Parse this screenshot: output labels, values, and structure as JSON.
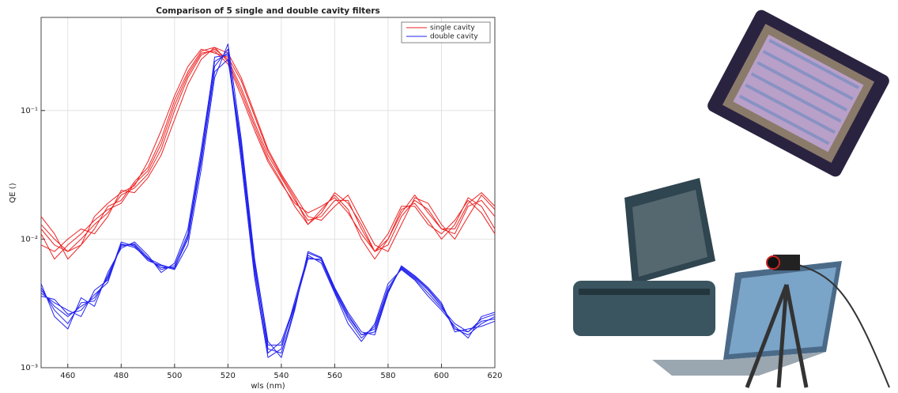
{
  "chart_data": {
    "type": "line",
    "title": "Comparison of 5 single and double cavity filters",
    "xlabel": "wls (nm)",
    "ylabel": "QE ()",
    "log_y": true,
    "grid": true,
    "legend": "top-right",
    "x": [
      450,
      455,
      460,
      465,
      470,
      475,
      480,
      485,
      490,
      495,
      500,
      505,
      510,
      515,
      520,
      525,
      530,
      535,
      540,
      545,
      550,
      555,
      560,
      565,
      570,
      575,
      580,
      585,
      590,
      595,
      600,
      605,
      610,
      615,
      620
    ],
    "xlim": [
      450,
      620
    ],
    "xticks": [
      460,
      480,
      500,
      520,
      540,
      560,
      580,
      600,
      620
    ],
    "ylim": [
      0.001,
      0.53
    ],
    "yticks": [
      {
        "value": 0.001,
        "label": "10⁻³"
      },
      {
        "value": 0.01,
        "label": "10⁻²"
      },
      {
        "value": 0.1,
        "label": "10⁻¹"
      }
    ],
    "series": [
      {
        "name": "single cavity",
        "color": "#ee2222",
        "curves": [
          [
            0.012,
            0.009,
            0.008,
            0.01,
            0.013,
            0.016,
            0.022,
            0.025,
            0.032,
            0.05,
            0.1,
            0.18,
            0.27,
            0.3,
            0.25,
            0.15,
            0.08,
            0.045,
            0.03,
            0.02,
            0.014,
            0.015,
            0.02,
            0.02,
            0.012,
            0.008,
            0.009,
            0.015,
            0.02,
            0.017,
            0.012,
            0.011,
            0.018,
            0.02,
            0.015
          ],
          [
            0.015,
            0.011,
            0.007,
            0.009,
            0.012,
            0.018,
            0.02,
            0.028,
            0.036,
            0.06,
            0.12,
            0.2,
            0.29,
            0.31,
            0.24,
            0.14,
            0.075,
            0.042,
            0.028,
            0.018,
            0.013,
            0.017,
            0.022,
            0.017,
            0.01,
            0.007,
            0.01,
            0.017,
            0.019,
            0.014,
            0.01,
            0.013,
            0.021,
            0.018,
            0.012
          ],
          [
            0.009,
            0.008,
            0.01,
            0.012,
            0.011,
            0.015,
            0.024,
            0.023,
            0.03,
            0.045,
            0.085,
            0.16,
            0.25,
            0.31,
            0.28,
            0.18,
            0.095,
            0.05,
            0.032,
            0.022,
            0.015,
            0.014,
            0.018,
            0.022,
            0.014,
            0.009,
            0.008,
            0.013,
            0.021,
            0.019,
            0.013,
            0.01,
            0.015,
            0.022,
            0.017
          ],
          [
            0.011,
            0.007,
            0.009,
            0.011,
            0.014,
            0.017,
            0.019,
            0.027,
            0.034,
            0.055,
            0.11,
            0.19,
            0.28,
            0.29,
            0.23,
            0.13,
            0.07,
            0.04,
            0.027,
            0.019,
            0.016,
            0.018,
            0.021,
            0.016,
            0.011,
            0.008,
            0.011,
            0.018,
            0.018,
            0.013,
            0.011,
            0.014,
            0.02,
            0.016,
            0.011
          ],
          [
            0.013,
            0.01,
            0.008,
            0.009,
            0.015,
            0.019,
            0.023,
            0.026,
            0.04,
            0.07,
            0.13,
            0.22,
            0.3,
            0.28,
            0.26,
            0.17,
            0.09,
            0.048,
            0.031,
            0.021,
            0.013,
            0.016,
            0.023,
            0.019,
            0.013,
            0.008,
            0.01,
            0.016,
            0.022,
            0.016,
            0.012,
            0.012,
            0.019,
            0.023,
            0.018
          ]
        ]
      },
      {
        "name": "double cavity",
        "color": "#2222ee",
        "curves": [
          [
            0.004,
            0.003,
            0.0025,
            0.003,
            0.0035,
            0.005,
            0.009,
            0.009,
            0.007,
            0.006,
            0.006,
            0.01,
            0.04,
            0.2,
            0.25,
            0.05,
            0.006,
            0.0015,
            0.0015,
            0.003,
            0.007,
            0.007,
            0.004,
            0.0025,
            0.0018,
            0.002,
            0.004,
            0.006,
            0.005,
            0.004,
            0.003,
            0.002,
            0.0018,
            0.0022,
            0.0025
          ],
          [
            0.0045,
            0.0025,
            0.002,
            0.0035,
            0.003,
            0.0055,
            0.0085,
            0.0095,
            0.0075,
            0.0055,
            0.0065,
            0.012,
            0.05,
            0.24,
            0.28,
            0.04,
            0.005,
            0.0012,
            0.0014,
            0.0033,
            0.0075,
            0.0065,
            0.0038,
            0.0022,
            0.0016,
            0.0022,
            0.0045,
            0.0058,
            0.0048,
            0.0036,
            0.0028,
            0.0021,
            0.0017,
            0.0025,
            0.0027
          ],
          [
            0.0038,
            0.0032,
            0.0028,
            0.0025,
            0.004,
            0.0048,
            0.0095,
            0.0088,
            0.0068,
            0.0062,
            0.0058,
            0.009,
            0.035,
            0.18,
            0.33,
            0.06,
            0.007,
            0.0016,
            0.0012,
            0.0028,
            0.008,
            0.0072,
            0.0042,
            0.0027,
            0.0019,
            0.0018,
            0.0038,
            0.0062,
            0.0052,
            0.0042,
            0.0032,
            0.0019,
            0.002,
            0.0021,
            0.0023
          ],
          [
            0.0042,
            0.0028,
            0.0022,
            0.0032,
            0.0033,
            0.0052,
            0.0088,
            0.0092,
            0.0072,
            0.0058,
            0.0062,
            0.011,
            0.045,
            0.22,
            0.3,
            0.045,
            0.0055,
            0.0013,
            0.0016,
            0.0031,
            0.0072,
            0.0068,
            0.0039,
            0.0024,
            0.0017,
            0.0021,
            0.0042,
            0.0059,
            0.0049,
            0.0038,
            0.0029,
            0.0022,
            0.0019,
            0.0024,
            0.0026
          ],
          [
            0.0036,
            0.0034,
            0.0026,
            0.0028,
            0.0037,
            0.0046,
            0.0092,
            0.0086,
            0.0071,
            0.0063,
            0.0059,
            0.0105,
            0.042,
            0.26,
            0.27,
            0.055,
            0.0065,
            0.0014,
            0.0013,
            0.0029,
            0.0078,
            0.0071,
            0.0041,
            0.0026,
            0.0018,
            0.0019,
            0.0039,
            0.0061,
            0.0051,
            0.0041,
            0.0031,
            0.002,
            0.0019,
            0.0023,
            0.0024
          ]
        ]
      }
    ]
  }
}
